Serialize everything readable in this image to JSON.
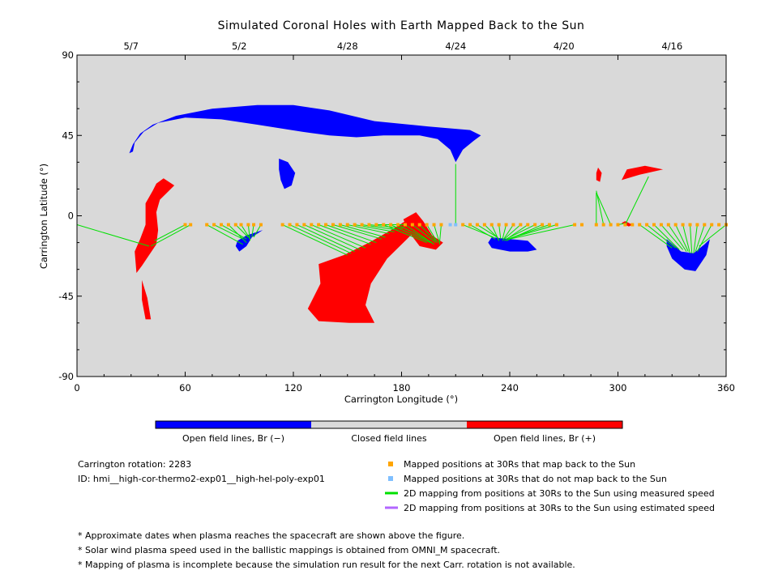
{
  "chart_data": {
    "type": "scatter",
    "title": "Simulated Coronal Holes with Earth Mapped Back to the Sun",
    "xlabel": "Carrington Longitude (°)",
    "ylabel": "Carrington Latitude (°)",
    "xlim": [
      0,
      360
    ],
    "ylim": [
      -90,
      90
    ],
    "x_ticks": [
      0,
      60,
      120,
      180,
      240,
      300,
      360
    ],
    "y_ticks": [
      90,
      45,
      0,
      -45,
      -90
    ],
    "top_axis_dates": [
      {
        "label": "5/7",
        "lon": 30
      },
      {
        "label": "5/2",
        "lon": 90
      },
      {
        "label": "4/28",
        "lon": 150
      },
      {
        "label": "4/24",
        "lon": 210
      },
      {
        "label": "4/20",
        "lon": 270
      },
      {
        "label": "4/16",
        "lon": 330
      }
    ],
    "colors": {
      "background": "#d9d9d9",
      "open_negative": "#0000ff",
      "open_positive": "#ff0000",
      "closed": "#d9d9d9",
      "mapped": "#ffa500",
      "not_mapped": "#7fbfff",
      "measured_line": "#00e000",
      "estimated_line": "#b266ff"
    },
    "coronal_holes": [
      {
        "polarity": "negative",
        "points": [
          [
            29,
            35
          ],
          [
            31,
            40
          ],
          [
            35,
            46
          ],
          [
            42,
            51
          ],
          [
            55,
            56
          ],
          [
            75,
            60
          ],
          [
            100,
            62
          ],
          [
            120,
            62
          ],
          [
            140,
            59
          ],
          [
            165,
            53
          ],
          [
            195,
            50
          ],
          [
            218,
            48
          ],
          [
            224,
            45
          ],
          [
            220,
            42
          ],
          [
            214,
            37
          ],
          [
            210,
            30
          ],
          [
            207,
            37
          ],
          [
            200,
            43
          ],
          [
            190,
            45
          ],
          [
            170,
            45
          ],
          [
            155,
            44
          ],
          [
            140,
            45
          ],
          [
            125,
            47
          ],
          [
            100,
            51
          ],
          [
            80,
            54
          ],
          [
            60,
            55
          ],
          [
            45,
            52
          ],
          [
            37,
            47
          ],
          [
            32,
            41
          ],
          [
            31,
            36
          ]
        ]
      },
      {
        "polarity": "negative",
        "points": [
          [
            112,
            32
          ],
          [
            117,
            30
          ],
          [
            121,
            24
          ],
          [
            119,
            17
          ],
          [
            115,
            15
          ],
          [
            113,
            20
          ],
          [
            112,
            26
          ]
        ]
      },
      {
        "polarity": "negative",
        "points": [
          [
            89,
            -14
          ],
          [
            94,
            -11
          ],
          [
            100,
            -9
          ],
          [
            103,
            -8
          ],
          [
            97,
            -12
          ],
          [
            94,
            -17
          ],
          [
            90,
            -20
          ],
          [
            88,
            -17
          ]
        ]
      },
      {
        "polarity": "negative",
        "points": [
          [
            230,
            -12
          ],
          [
            240,
            -13
          ],
          [
            250,
            -14
          ],
          [
            255,
            -19
          ],
          [
            250,
            -20
          ],
          [
            240,
            -20
          ],
          [
            230,
            -18
          ],
          [
            228,
            -15
          ]
        ]
      },
      {
        "polarity": "negative",
        "points": [
          [
            327,
            -13
          ],
          [
            335,
            -20
          ],
          [
            342,
            -21
          ],
          [
            348,
            -16
          ],
          [
            351,
            -13
          ],
          [
            349,
            -22
          ],
          [
            343,
            -31
          ],
          [
            337,
            -30
          ],
          [
            330,
            -24
          ],
          [
            327,
            -17
          ]
        ]
      },
      {
        "polarity": "positive",
        "points": [
          [
            38,
            7
          ],
          [
            42,
            14
          ],
          [
            44,
            18
          ],
          [
            48,
            21
          ],
          [
            54,
            17
          ],
          [
            50,
            13
          ],
          [
            46,
            9
          ],
          [
            44,
            2
          ],
          [
            45,
            -8
          ],
          [
            44,
            -16
          ],
          [
            40,
            -22
          ],
          [
            36,
            -28
          ],
          [
            33,
            -32
          ],
          [
            32,
            -20
          ],
          [
            35,
            -13
          ],
          [
            38,
            -5
          ],
          [
            38,
            2
          ]
        ]
      },
      {
        "polarity": "positive",
        "points": [
          [
            36,
            -36
          ],
          [
            39,
            -46
          ],
          [
            41,
            -58
          ],
          [
            38,
            -58
          ],
          [
            36,
            -47
          ]
        ]
      },
      {
        "polarity": "positive",
        "points": [
          [
            134,
            -27
          ],
          [
            148,
            -22
          ],
          [
            162,
            -15
          ],
          [
            176,
            -7
          ],
          [
            185,
            -1
          ],
          [
            189,
            -7
          ],
          [
            183,
            -13
          ],
          [
            172,
            -24
          ],
          [
            163,
            -38
          ],
          [
            160,
            -50
          ],
          [
            165,
            -60
          ],
          [
            151,
            -60
          ],
          [
            134,
            -59
          ],
          [
            128,
            -52
          ],
          [
            135,
            -38
          ]
        ]
      },
      {
        "polarity": "positive",
        "points": [
          [
            181,
            -2
          ],
          [
            188,
            2
          ],
          [
            192,
            -3
          ],
          [
            197,
            -11
          ],
          [
            203,
            -15
          ],
          [
            199,
            -19
          ],
          [
            190,
            -17
          ],
          [
            184,
            -9
          ]
        ]
      },
      {
        "polarity": "positive",
        "points": [
          [
            289,
            27
          ],
          [
            291,
            24
          ],
          [
            290,
            19
          ],
          [
            288,
            20
          ],
          [
            288,
            24
          ]
        ]
      },
      {
        "polarity": "positive",
        "points": [
          [
            302,
            20
          ],
          [
            305,
            26
          ],
          [
            315,
            28
          ],
          [
            325,
            26
          ],
          [
            312,
            23
          ]
        ]
      },
      {
        "polarity": "positive",
        "points": [
          [
            302,
            -4
          ],
          [
            306,
            -6
          ],
          [
            308,
            -5
          ],
          [
            304,
            -3
          ]
        ]
      }
    ],
    "mapped_positions": {
      "lat": -5,
      "orange_lons": [
        60,
        63,
        72,
        76,
        80,
        84,
        88,
        91,
        95,
        98,
        102,
        114,
        118,
        122,
        126,
        130,
        134,
        138,
        142,
        146,
        150,
        154,
        158,
        162,
        166,
        170,
        174,
        178,
        182,
        186,
        190,
        194,
        198,
        202,
        214,
        218,
        222,
        226,
        230,
        234,
        238,
        242,
        246,
        250,
        254,
        258,
        262,
        266,
        276,
        280,
        288,
        292,
        296,
        300,
        304,
        308,
        312,
        316,
        320,
        324,
        328,
        332,
        336,
        340,
        344,
        348,
        352,
        356,
        360
      ],
      "blue_lons": [
        207,
        210
      ]
    },
    "measured_mapping_lines": [
      [
        [
          0,
          -5
        ],
        [
          40,
          -17
        ]
      ],
      [
        [
          60,
          -5
        ],
        [
          43,
          -14
        ]
      ],
      [
        [
          63,
          -5
        ],
        [
          41,
          -17
        ]
      ],
      [
        [
          72,
          -5
        ],
        [
          92,
          -16
        ]
      ],
      [
        [
          76,
          -5
        ],
        [
          92,
          -13
        ]
      ],
      [
        [
          80,
          -5
        ],
        [
          94,
          -13
        ]
      ],
      [
        [
          84,
          -5
        ],
        [
          94,
          -15
        ]
      ],
      [
        [
          88,
          -5
        ],
        [
          95,
          -12
        ]
      ],
      [
        [
          91,
          -5
        ],
        [
          96,
          -13
        ]
      ],
      [
        [
          95,
          -5
        ],
        [
          96,
          -14
        ]
      ],
      [
        [
          98,
          -5
        ],
        [
          97,
          -12
        ]
      ],
      [
        [
          102,
          -5
        ],
        [
          98,
          -12
        ]
      ],
      [
        [
          114,
          -5
        ],
        [
          150,
          -22
        ]
      ],
      [
        [
          118,
          -5
        ],
        [
          152,
          -21
        ]
      ],
      [
        [
          122,
          -5
        ],
        [
          154,
          -20
        ]
      ],
      [
        [
          126,
          -5
        ],
        [
          157,
          -19
        ]
      ],
      [
        [
          130,
          -5
        ],
        [
          160,
          -18
        ]
      ],
      [
        [
          134,
          -5
        ],
        [
          163,
          -16
        ]
      ],
      [
        [
          138,
          -5
        ],
        [
          166,
          -15
        ]
      ],
      [
        [
          142,
          -5
        ],
        [
          169,
          -13
        ]
      ],
      [
        [
          146,
          -5
        ],
        [
          171,
          -12
        ]
      ],
      [
        [
          150,
          -5
        ],
        [
          173,
          -10
        ]
      ],
      [
        [
          154,
          -5
        ],
        [
          176,
          -9
        ]
      ],
      [
        [
          158,
          -5
        ],
        [
          178,
          -8
        ]
      ],
      [
        [
          162,
          -5
        ],
        [
          181,
          -7
        ]
      ],
      [
        [
          166,
          -5
        ],
        [
          183,
          -5
        ]
      ],
      [
        [
          170,
          -5
        ],
        [
          194,
          -15
        ]
      ],
      [
        [
          174,
          -5
        ],
        [
          196,
          -15
        ]
      ],
      [
        [
          178,
          -5
        ],
        [
          197,
          -15
        ]
      ],
      [
        [
          182,
          -5
        ],
        [
          198,
          -16
        ]
      ],
      [
        [
          186,
          -5
        ],
        [
          199,
          -15
        ]
      ],
      [
        [
          190,
          -5
        ],
        [
          199,
          -14
        ]
      ],
      [
        [
          194,
          -5
        ],
        [
          200,
          -15
        ]
      ],
      [
        [
          198,
          -5
        ],
        [
          201,
          -15
        ]
      ],
      [
        [
          202,
          -5
        ],
        [
          201,
          -16
        ]
      ],
      [
        [
          210,
          -5
        ],
        [
          210,
          29
        ]
      ],
      [
        [
          214,
          -5
        ],
        [
          231,
          -12
        ]
      ],
      [
        [
          218,
          -5
        ],
        [
          232,
          -13
        ]
      ],
      [
        [
          222,
          -5
        ],
        [
          233,
          -12
        ]
      ],
      [
        [
          226,
          -5
        ],
        [
          234,
          -13
        ]
      ],
      [
        [
          230,
          -5
        ],
        [
          234,
          -14
        ]
      ],
      [
        [
          234,
          -5
        ],
        [
          235,
          -13
        ]
      ],
      [
        [
          238,
          -5
        ],
        [
          236,
          -13
        ]
      ],
      [
        [
          242,
          -5
        ],
        [
          236,
          -14
        ]
      ],
      [
        [
          246,
          -5
        ],
        [
          237,
          -13
        ]
      ],
      [
        [
          250,
          -5
        ],
        [
          237,
          -14
        ]
      ],
      [
        [
          254,
          -5
        ],
        [
          238,
          -13
        ]
      ],
      [
        [
          258,
          -5
        ],
        [
          238,
          -14
        ]
      ],
      [
        [
          262,
          -5
        ],
        [
          239,
          -13
        ]
      ],
      [
        [
          266,
          -5
        ],
        [
          239,
          -13
        ]
      ],
      [
        [
          276,
          -5
        ],
        [
          240,
          -13
        ]
      ],
      [
        [
          288,
          -5
        ],
        [
          288,
          13
        ]
      ],
      [
        [
          292,
          -5
        ],
        [
          288,
          14
        ]
      ],
      [
        [
          296,
          -5
        ],
        [
          288,
          13
        ]
      ],
      [
        [
          300,
          -5
        ],
        [
          305,
          -4
        ]
      ],
      [
        [
          304,
          -5
        ],
        [
          317,
          22
        ]
      ],
      [
        [
          312,
          -5
        ],
        [
          330,
          -18
        ]
      ],
      [
        [
          316,
          -5
        ],
        [
          332,
          -18
        ]
      ],
      [
        [
          320,
          -5
        ],
        [
          334,
          -19
        ]
      ],
      [
        [
          324,
          -5
        ],
        [
          336,
          -19
        ]
      ],
      [
        [
          328,
          -5
        ],
        [
          338,
          -20
        ]
      ],
      [
        [
          332,
          -5
        ],
        [
          339,
          -20
        ]
      ],
      [
        [
          336,
          -5
        ],
        [
          340,
          -21
        ]
      ],
      [
        [
          340,
          -5
        ],
        [
          341,
          -21
        ]
      ],
      [
        [
          344,
          -5
        ],
        [
          342,
          -21
        ]
      ],
      [
        [
          348,
          -5
        ],
        [
          343,
          -20
        ]
      ],
      [
        [
          352,
          -5
        ],
        [
          344,
          -20
        ]
      ],
      [
        [
          360,
          -5
        ],
        [
          345,
          -17
        ]
      ]
    ]
  },
  "colorbar": {
    "labels": [
      "Open field lines, Br (−)",
      "Closed field lines",
      "Open field lines, Br (+)"
    ],
    "colors": [
      "#0000ff",
      "#d9d9d9",
      "#ff0000"
    ]
  },
  "info": {
    "rotation": "Carrington rotation: 2283",
    "id": "ID: hmi__high-cor-thermo2-exp01__high-hel-poly-exp01"
  },
  "legend": [
    {
      "label": "Mapped positions at 30Rs that map back to the Sun",
      "kind": "square",
      "color": "#ffa500"
    },
    {
      "label": "Mapped positions at 30Rs that do not map back to the Sun",
      "kind": "square",
      "color": "#7fbfff"
    },
    {
      "label": "2D mapping from positions at 30Rs to the Sun using measured speed",
      "kind": "line",
      "color": "#00e000"
    },
    {
      "label": "2D mapping from positions at 30Rs to the Sun using estimated speed",
      "kind": "line",
      "color": "#b266ff"
    }
  ],
  "footnotes": [
    "* Approximate dates when plasma reaches the spacecraft are shown above the figure.",
    "* Solar wind plasma speed used in the ballistic mappings is obtained from OMNI_M spacecraft.",
    "* Mapping of plasma is incomplete because the simulation run result for the next Carr. rotation is not available."
  ]
}
